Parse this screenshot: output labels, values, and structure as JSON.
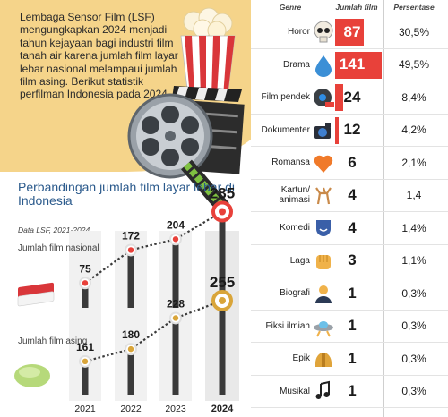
{
  "intro": {
    "text": "Lembaga Sensor Film (LSF) mengungkapkan 2024 menjadi tahun kejayaan bagi industri film tanah air karena jumlah film layar lebar nasional melampaui jumlah film asing. Berikut statistik perfilman Indonesia pada 2024."
  },
  "chart_data": [
    {
      "type": "line",
      "title": "Perbandingan jumlah film layar lebar di Indonesia",
      "source": "Data LSF, 2021-2024",
      "x": [
        "2021",
        "2022",
        "2023",
        "2024"
      ],
      "series": [
        {
          "name": "Jumlah film nasional",
          "values": [
            75,
            172,
            204,
            285
          ]
        },
        {
          "name": "Jumlah film asing",
          "values": [
            161,
            180,
            228,
            255
          ]
        }
      ],
      "highlight_color": "#e8413a",
      "second_highlight_color": "#d9a53a"
    },
    {
      "type": "table",
      "columns": [
        "Genre",
        "Jumlah film",
        "Persentase"
      ],
      "max_count": 141,
      "bar_color": "#e8413a",
      "rows": [
        {
          "genre": "Horor",
          "count": 87,
          "pct": "30,5%",
          "icon": "skull-icon"
        },
        {
          "genre": "Drama",
          "count": 141,
          "pct": "49,5%",
          "icon": "tear-drop-icon"
        },
        {
          "genre": "Film pendek",
          "count": 24,
          "pct": "8,4%",
          "icon": "film-reel-icon"
        },
        {
          "genre": "Dokumenter",
          "count": 12,
          "pct": "4,2%",
          "icon": "camera-icon"
        },
        {
          "genre": "Romansa",
          "count": 6,
          "pct": "2,1%",
          "icon": "heart-icon"
        },
        {
          "genre": "Kartun/\nanimasi",
          "count": 4,
          "pct": "1,4",
          "icon": "deer-icon"
        },
        {
          "genre": "Komedi",
          "count": 4,
          "pct": "1,4%",
          "icon": "comedy-mask-icon"
        },
        {
          "genre": "Laga",
          "count": 3,
          "pct": "1,1%",
          "icon": "fist-icon"
        },
        {
          "genre": "Biografi",
          "count": 1,
          "pct": "0,3%",
          "icon": "portrait-icon"
        },
        {
          "genre": "Fiksi ilmiah",
          "count": 1,
          "pct": "0,3%",
          "icon": "ufo-icon"
        },
        {
          "genre": "Epik",
          "count": 1,
          "pct": "0,3%",
          "icon": "helmet-icon"
        },
        {
          "genre": "Musikal",
          "count": 1,
          "pct": "0,3%",
          "icon": "music-note-icon"
        }
      ]
    }
  ]
}
